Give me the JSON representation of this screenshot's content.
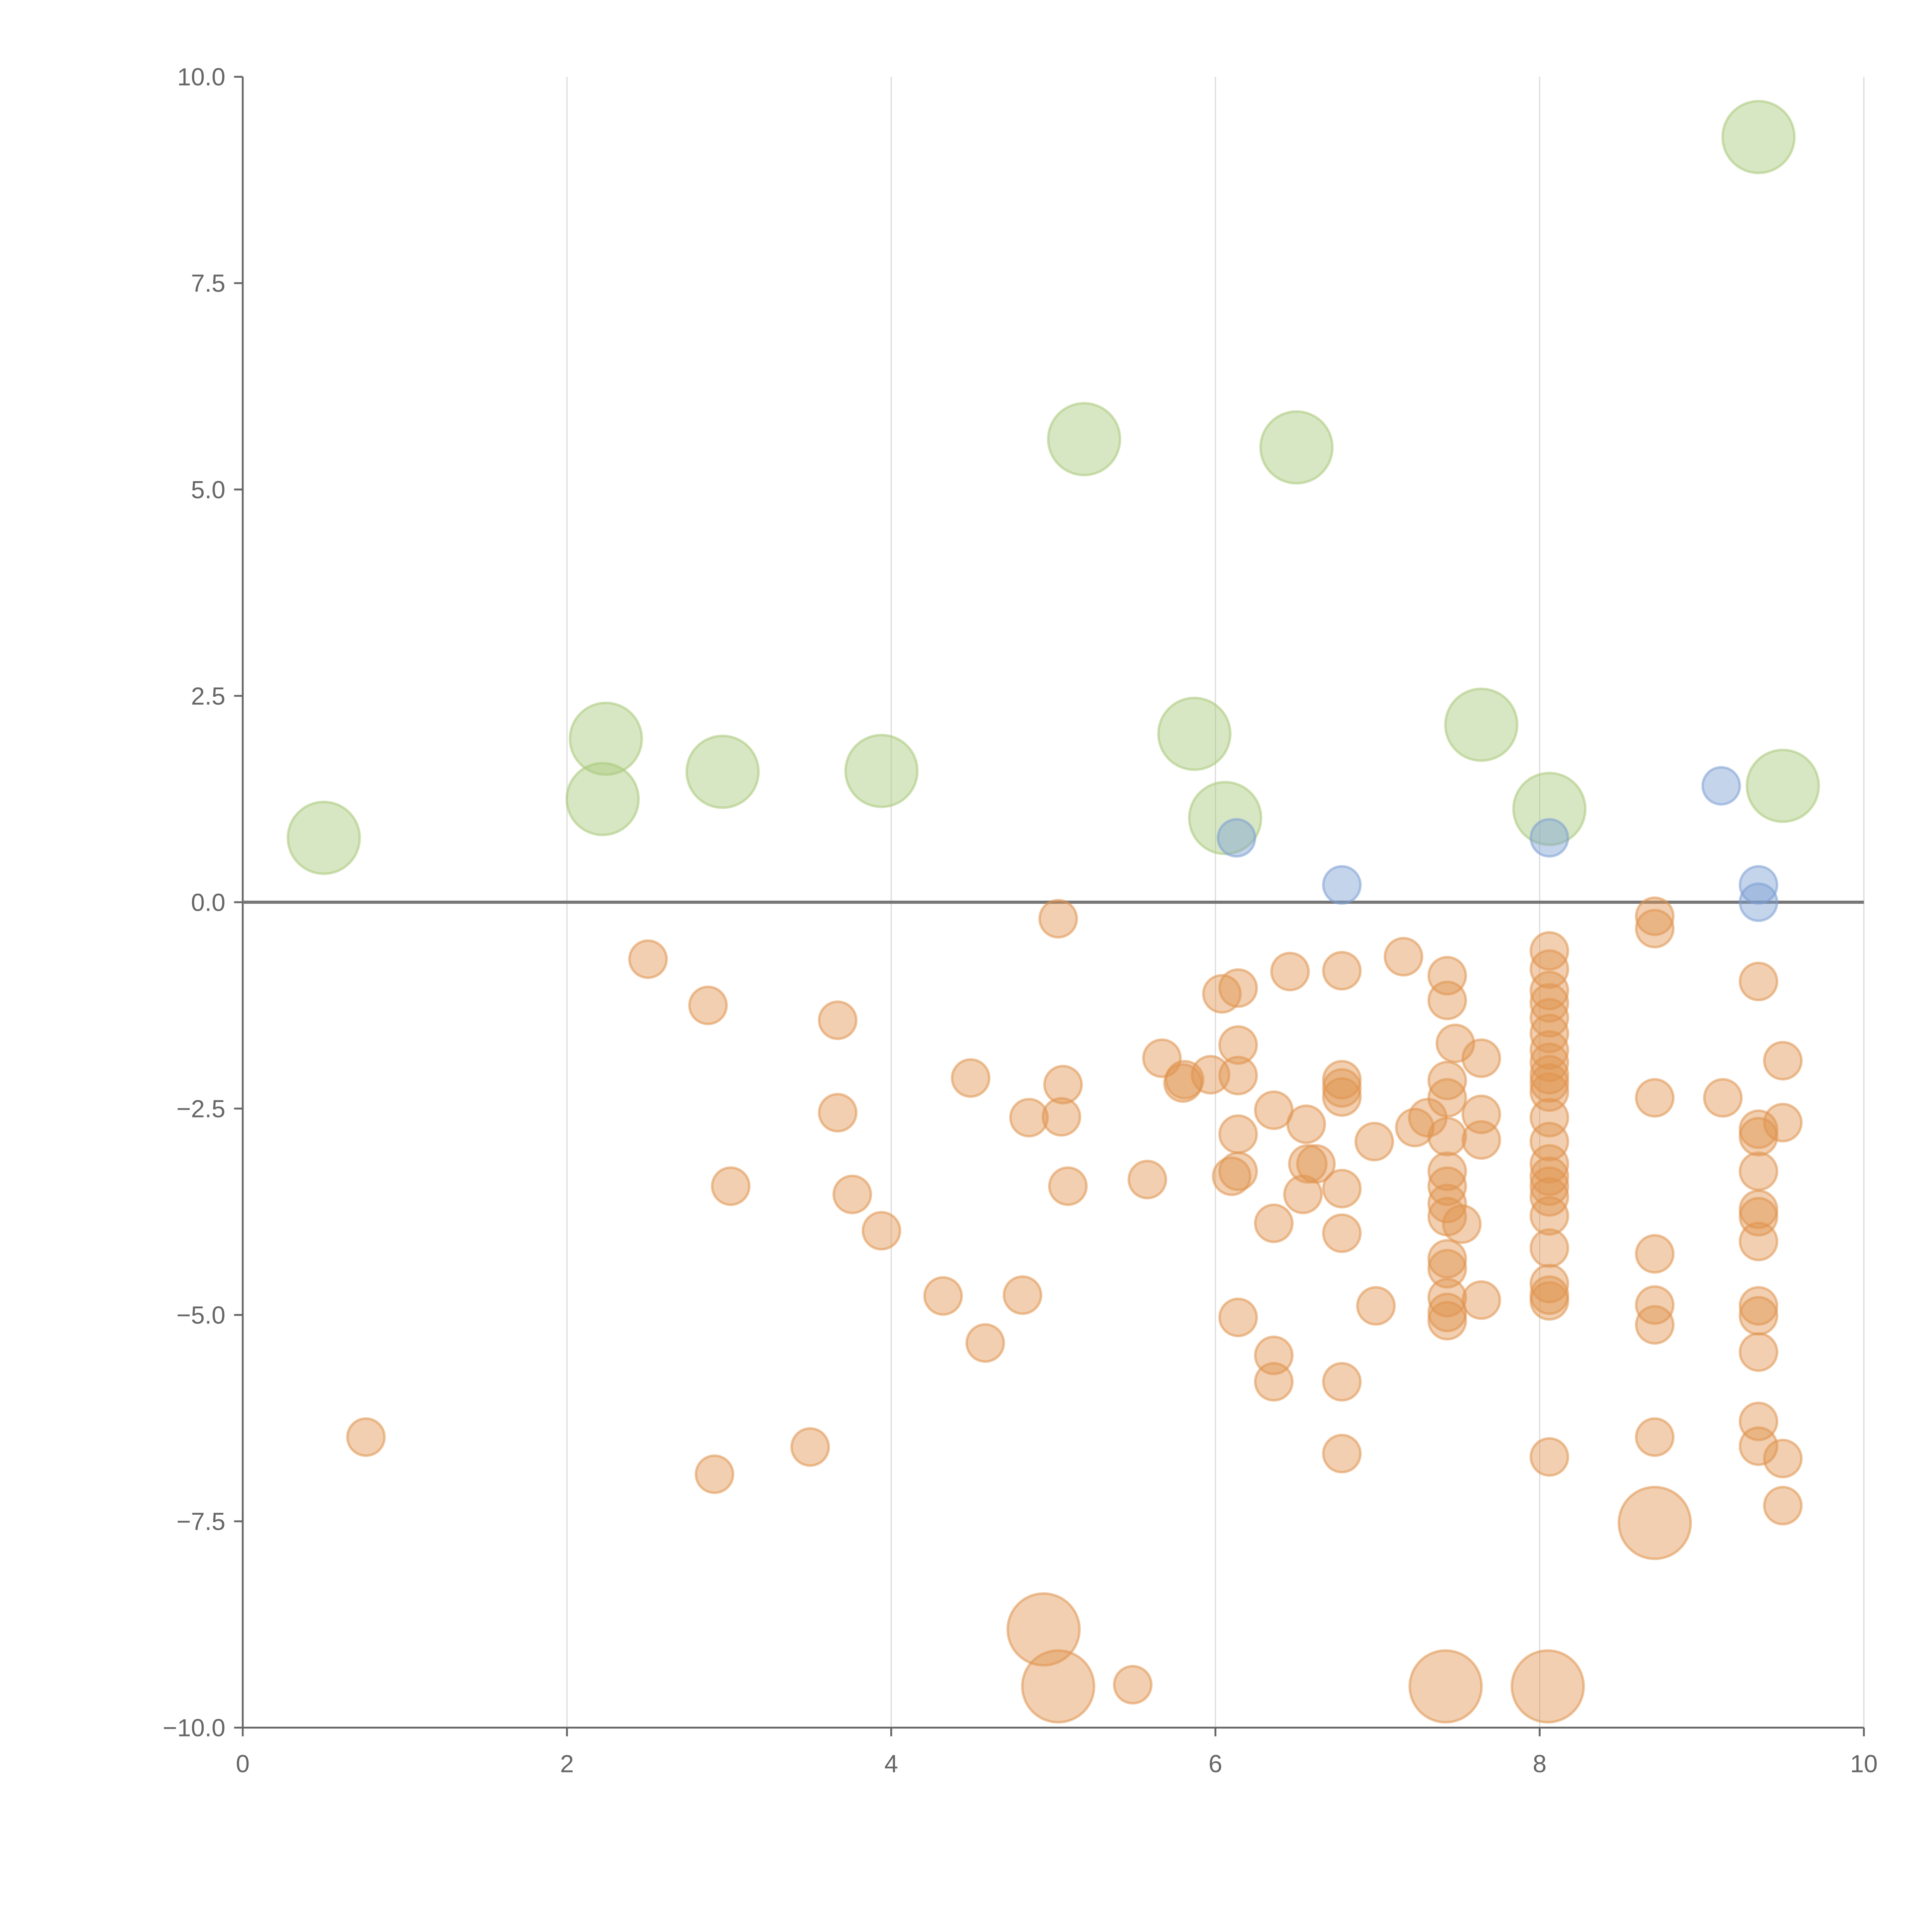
{
  "chart_data": {
    "type": "scatter",
    "title": "",
    "xlabel": "",
    "ylabel": "",
    "xlim": [
      0,
      10
    ],
    "ylim": [
      -10,
      10
    ],
    "grid": "vertical",
    "x_ticks": [
      "0",
      "2",
      "4",
      "6",
      "8",
      "10"
    ],
    "x_tick_values": [
      0,
      2,
      4,
      6,
      8,
      10
    ],
    "y_ticks": [
      "10.0",
      "7.5",
      "5.0",
      "2.5",
      "0.0",
      "−2.5",
      "−5.0",
      "−7.5",
      "−10.0"
    ],
    "y_tick_values": [
      10,
      7.5,
      5,
      2.5,
      0,
      -2.5,
      -5,
      -7.5,
      -10
    ],
    "reference_line_y": 0,
    "series": [
      {
        "name": "green",
        "color": "#a9c97a",
        "size": 4,
        "points": [
          [
            0.5,
            0.78
          ],
          [
            2.24,
            1.98
          ],
          [
            2.22,
            1.25
          ],
          [
            2.96,
            1.58
          ],
          [
            3.94,
            1.59
          ],
          [
            5.19,
            5.61
          ],
          [
            6.5,
            5.51
          ],
          [
            5.87,
            2.04
          ],
          [
            6.06,
            1.02
          ],
          [
            7.64,
            2.15
          ],
          [
            8.06,
            1.13
          ],
          [
            9.5,
            1.41
          ],
          [
            9.35,
            9.27
          ]
        ]
      },
      {
        "name": "blue",
        "color": "#7d9fd3",
        "size": 1,
        "points": [
          [
            6.13,
            0.78
          ],
          [
            6.78,
            0.21
          ],
          [
            8.06,
            0.78
          ],
          [
            9.12,
            1.41
          ],
          [
            9.35,
            0.21
          ],
          [
            9.35,
            0.0
          ]
        ]
      },
      {
        "name": "orange-large",
        "color": "#e0944f",
        "size": 4,
        "points": [
          [
            4.94,
            -8.81
          ],
          [
            5.03,
            -9.5
          ],
          [
            7.42,
            -9.5
          ],
          [
            8.05,
            -9.5
          ],
          [
            8.71,
            -7.52
          ]
        ]
      },
      {
        "name": "orange",
        "color": "#e0944f",
        "size": 1,
        "points": [
          [
            2.5,
            -0.69
          ],
          [
            2.87,
            -1.25
          ],
          [
            3.67,
            -1.43
          ],
          [
            3.67,
            -2.55
          ],
          [
            3.01,
            -3.44
          ],
          [
            3.76,
            -3.54
          ],
          [
            3.94,
            -3.98
          ],
          [
            0.76,
            -6.48
          ],
          [
            2.91,
            -6.93
          ],
          [
            3.5,
            -6.6
          ],
          [
            4.49,
            -2.13
          ],
          [
            4.32,
            -4.77
          ],
          [
            4.81,
            -4.76
          ],
          [
            4.58,
            -5.34
          ],
          [
            4.85,
            -2.61
          ],
          [
            5.06,
            -2.21
          ],
          [
            5.05,
            -2.6
          ],
          [
            5.09,
            -3.44
          ],
          [
            5.03,
            -0.2
          ],
          [
            5.49,
            -9.48
          ],
          [
            5.58,
            -3.36
          ],
          [
            5.67,
            -1.89
          ],
          [
            5.8,
            -2.19
          ],
          [
            5.81,
            -2.15
          ],
          [
            5.97,
            -2.09
          ],
          [
            6.04,
            -1.11
          ],
          [
            6.14,
            -1.04
          ],
          [
            6.14,
            -1.73
          ],
          [
            6.14,
            -2.1
          ],
          [
            6.14,
            -2.81
          ],
          [
            6.1,
            -3.32
          ],
          [
            6.14,
            -3.26
          ],
          [
            6.14,
            -5.03
          ],
          [
            6.36,
            -2.52
          ],
          [
            6.36,
            -3.89
          ],
          [
            6.36,
            -5.49
          ],
          [
            6.36,
            -5.81
          ],
          [
            6.46,
            -0.84
          ],
          [
            6.56,
            -2.69
          ],
          [
            6.57,
            -3.17
          ],
          [
            6.62,
            -3.17
          ],
          [
            6.54,
            -3.54
          ],
          [
            6.78,
            -0.83
          ],
          [
            6.78,
            -2.15
          ],
          [
            6.78,
            -2.25
          ],
          [
            6.78,
            -2.36
          ],
          [
            6.78,
            -3.47
          ],
          [
            6.78,
            -4.01
          ],
          [
            6.78,
            -5.81
          ],
          [
            6.78,
            -6.68
          ],
          [
            6.98,
            -2.9
          ],
          [
            6.99,
            -4.89
          ],
          [
            7.16,
            -0.66
          ],
          [
            7.23,
            -2.73
          ],
          [
            7.31,
            -2.61
          ],
          [
            7.43,
            -0.89
          ],
          [
            7.43,
            -1.19
          ],
          [
            7.48,
            -1.71
          ],
          [
            7.43,
            -2.16
          ],
          [
            7.43,
            -2.37
          ],
          [
            7.43,
            -2.84
          ],
          [
            7.43,
            -3.26
          ],
          [
            7.43,
            -3.44
          ],
          [
            7.43,
            -3.65
          ],
          [
            7.43,
            -3.81
          ],
          [
            7.52,
            -3.9
          ],
          [
            7.43,
            -4.32
          ],
          [
            7.43,
            -4.44
          ],
          [
            7.43,
            -4.79
          ],
          [
            7.43,
            -4.97
          ],
          [
            7.43,
            -5.07
          ],
          [
            7.64,
            -1.89
          ],
          [
            7.64,
            -2.57
          ],
          [
            7.64,
            -2.88
          ],
          [
            7.64,
            -4.82
          ],
          [
            8.06,
            -0.59
          ],
          [
            8.06,
            -0.81
          ],
          [
            8.06,
            -1.07
          ],
          [
            8.06,
            -1.22
          ],
          [
            8.06,
            -1.4
          ],
          [
            8.06,
            -1.59
          ],
          [
            8.06,
            -1.79
          ],
          [
            8.06,
            -1.94
          ],
          [
            8.06,
            -2.09
          ],
          [
            8.06,
            -2.19
          ],
          [
            8.06,
            -2.3
          ],
          [
            8.06,
            -2.61
          ],
          [
            8.06,
            -2.9
          ],
          [
            8.06,
            -3.17
          ],
          [
            8.06,
            -3.32
          ],
          [
            8.06,
            -3.44
          ],
          [
            8.06,
            -3.57
          ],
          [
            8.06,
            -3.8
          ],
          [
            8.06,
            -4.19
          ],
          [
            8.06,
            -4.62
          ],
          [
            8.06,
            -4.76
          ],
          [
            8.06,
            -4.83
          ],
          [
            8.06,
            -6.72
          ],
          [
            8.71,
            -0.17
          ],
          [
            8.71,
            -0.32
          ],
          [
            8.71,
            -2.37
          ],
          [
            8.71,
            -4.26
          ],
          [
            8.71,
            -4.88
          ],
          [
            8.71,
            -5.12
          ],
          [
            8.71,
            -6.48
          ],
          [
            9.13,
            -2.37
          ],
          [
            9.35,
            -0.96
          ],
          [
            9.35,
            -2.75
          ],
          [
            9.35,
            -2.84
          ],
          [
            9.35,
            -3.26
          ],
          [
            9.35,
            -3.72
          ],
          [
            9.35,
            -3.81
          ],
          [
            9.35,
            -4.11
          ],
          [
            9.35,
            -4.89
          ],
          [
            9.35,
            -5.01
          ],
          [
            9.35,
            -5.45
          ],
          [
            9.35,
            -6.29
          ],
          [
            9.35,
            -6.59
          ],
          [
            9.5,
            -1.92
          ],
          [
            9.5,
            -2.67
          ],
          [
            9.5,
            -6.74
          ],
          [
            9.5,
            -7.31
          ]
        ]
      }
    ]
  }
}
